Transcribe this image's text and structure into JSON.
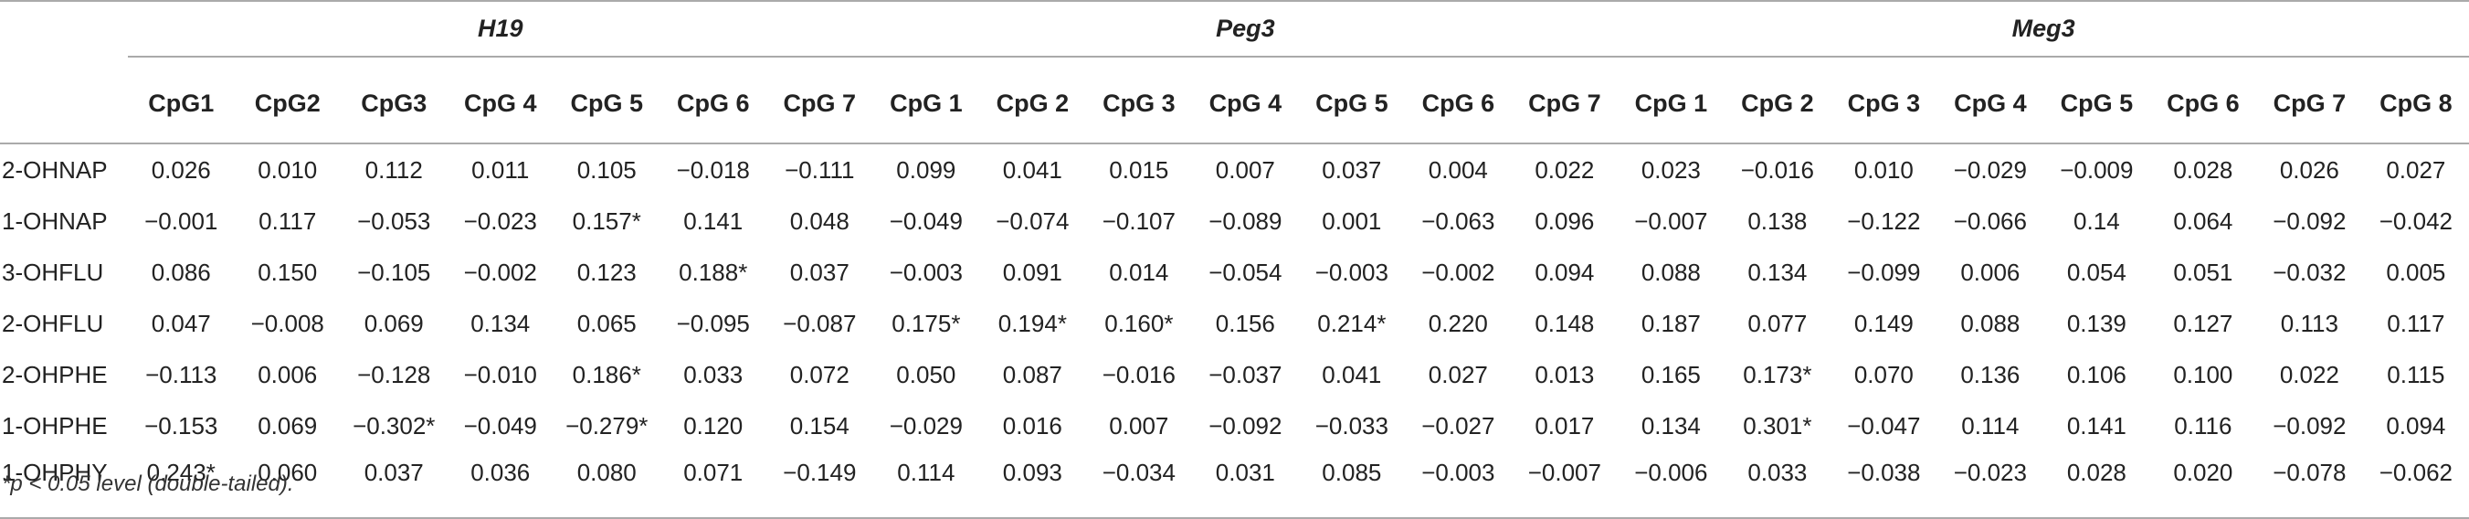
{
  "groups": [
    {
      "name": "H19",
      "columns": [
        "CpG1",
        "CpG2",
        "CpG3",
        "CpG 4",
        "CpG 5",
        "CpG 6",
        "CpG 7"
      ]
    },
    {
      "name": "Peg3",
      "columns": [
        "CpG 1",
        "CpG 2",
        "CpG 3",
        "CpG 4",
        "CpG 5",
        "CpG 6",
        "CpG 7"
      ]
    },
    {
      "name": "Meg3",
      "columns": [
        "CpG 1",
        "CpG 2",
        "CpG 3",
        "CpG 4",
        "CpG 5",
        "CpG 6",
        "CpG 7",
        "CpG 8"
      ]
    }
  ],
  "rows": [
    {
      "label": "2-OHNAP",
      "values": [
        "0.026",
        "0.010",
        "0.112",
        "0.011",
        "0.105",
        "−0.018",
        "−0.111",
        "0.099",
        "0.041",
        "0.015",
        "0.007",
        "0.037",
        "0.004",
        "0.022",
        "0.023",
        "−0.016",
        "0.010",
        "−0.029",
        "−0.009",
        "0.028",
        "0.026",
        "0.027"
      ]
    },
    {
      "label": "1-OHNAP",
      "values": [
        "−0.001",
        "0.117",
        "−0.053",
        "−0.023",
        "0.157*",
        "0.141",
        "0.048",
        "−0.049",
        "−0.074",
        "−0.107",
        "−0.089",
        "0.001",
        "−0.063",
        "0.096",
        "−0.007",
        "0.138",
        "−0.122",
        "−0.066",
        "0.14",
        "0.064",
        "−0.092",
        "−0.042"
      ]
    },
    {
      "label": "3-OHFLU",
      "values": [
        "0.086",
        "0.150",
        "−0.105",
        "−0.002",
        "0.123",
        "0.188*",
        "0.037",
        "−0.003",
        "0.091",
        "0.014",
        "−0.054",
        "−0.003",
        "−0.002",
        "0.094",
        "0.088",
        "0.134",
        "−0.099",
        "0.006",
        "0.054",
        "0.051",
        "−0.032",
        "0.005"
      ]
    },
    {
      "label": "2-OHFLU",
      "values": [
        "0.047",
        "−0.008",
        "0.069",
        "0.134",
        "0.065",
        "−0.095",
        "−0.087",
        "0.175*",
        "0.194*",
        "0.160*",
        "0.156",
        "0.214*",
        "0.220",
        "0.148",
        "0.187",
        "0.077",
        "0.149",
        "0.088",
        "0.139",
        "0.127",
        "0.113",
        "0.117"
      ]
    },
    {
      "label": "2-OHPHE",
      "values": [
        "−0.113",
        "0.006",
        "−0.128",
        "−0.010",
        "0.186*",
        "0.033",
        "0.072",
        "0.050",
        "0.087",
        "−0.016",
        "−0.037",
        "0.041",
        "0.027",
        "0.013",
        "0.165",
        "0.173*",
        "0.070",
        "0.136",
        "0.106",
        "0.100",
        "0.022",
        "0.115"
      ]
    },
    {
      "label": "1-OHPHE",
      "values": [
        "−0.153",
        "0.069",
        "−0.302*",
        "−0.049",
        "−0.279*",
        "0.120",
        "0.154",
        "−0.029",
        "0.016",
        "0.007",
        "−0.092",
        "−0.033",
        "−0.027",
        "0.017",
        "0.134",
        "0.301*",
        "−0.047",
        "0.114",
        "0.141",
        "0.116",
        "−0.092",
        "0.094"
      ]
    },
    {
      "label": "1-OHPHY",
      "values": [
        "0.243*",
        "0.060",
        "0.037",
        "0.036",
        "0.080",
        "0.071",
        "−0.149",
        "0.114",
        "0.093",
        "−0.034",
        "0.031",
        "0.085",
        "−0.003",
        "−0.007",
        "−0.006",
        "0.033",
        "−0.038",
        "−0.023",
        "0.028",
        "0.020",
        "−0.078",
        "−0.062"
      ]
    }
  ],
  "footnote": "*p < 0.05 level (double-tailed)."
}
